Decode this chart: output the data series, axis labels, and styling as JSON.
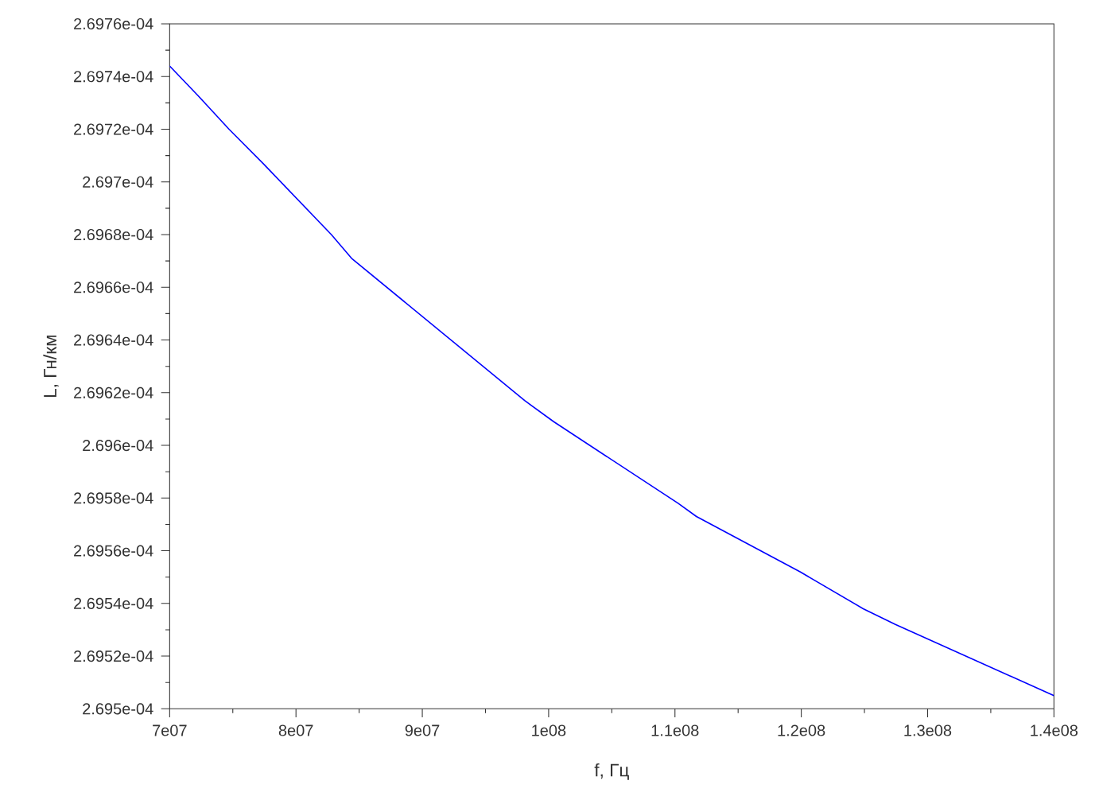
{
  "chart_data": {
    "type": "line",
    "xlabel": "f, Гц",
    "ylabel": "L, Гн/км",
    "x": [
      70000000,
      72200000,
      74700000,
      77400000,
      82800000,
      84400000,
      98100000,
      100400000,
      110250000,
      111700000,
      119900000,
      124900000,
      127450000,
      140000000
    ],
    "values": [
      0.000269744,
      0.000269733,
      0.00026972,
      0.000269707,
      0.00026968,
      0.000269671,
      0.000269617,
      0.000269609,
      0.000269578,
      0.000269573,
      0.000269552,
      0.000269538,
      0.000269532,
      0.000269505
    ],
    "color": "#0000ff",
    "line_style": "solid",
    "marker": "none",
    "grid": false,
    "xlim": [
      70000000,
      140000000
    ],
    "ylim": [
      0.0002695,
      0.00026976
    ],
    "xticks": [
      {
        "value": 70000000,
        "label": "7e07"
      },
      {
        "value": 80000000,
        "label": "8e07"
      },
      {
        "value": 90000000,
        "label": "9e07"
      },
      {
        "value": 100000000,
        "label": "1e08"
      },
      {
        "value": 110000000,
        "label": "1.1e08"
      },
      {
        "value": 120000000,
        "label": "1.2e08"
      },
      {
        "value": 130000000,
        "label": "1.3e08"
      },
      {
        "value": 140000000,
        "label": "1.4e08"
      }
    ],
    "yticks": [
      {
        "value": 0.0002695,
        "label": "2.695e-04"
      },
      {
        "value": 0.00026952,
        "label": "2.6952e-04"
      },
      {
        "value": 0.00026954,
        "label": "2.6954e-04"
      },
      {
        "value": 0.00026956,
        "label": "2.6956e-04"
      },
      {
        "value": 0.00026958,
        "label": "2.6958e-04"
      },
      {
        "value": 0.0002696,
        "label": "2.696e-04"
      },
      {
        "value": 0.00026962,
        "label": "2.6962e-04"
      },
      {
        "value": 0.00026964,
        "label": "2.6964e-04"
      },
      {
        "value": 0.00026966,
        "label": "2.6966e-04"
      },
      {
        "value": 0.00026968,
        "label": "2.6968e-04"
      },
      {
        "value": 0.0002697,
        "label": "2.697e-04"
      },
      {
        "value": 0.00026972,
        "label": "2.6972e-04"
      },
      {
        "value": 0.00026974,
        "label": "2.6974e-04"
      },
      {
        "value": 0.00026976,
        "label": "2.6976e-04"
      }
    ]
  }
}
